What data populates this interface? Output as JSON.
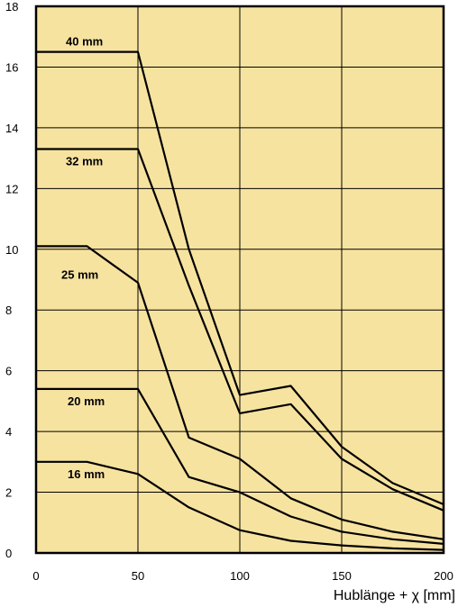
{
  "chart_data": {
    "type": "line",
    "title": "",
    "xlabel": "Hublänge + χ [mm]",
    "ylabel": "",
    "xlim": [
      0,
      200
    ],
    "ylim": [
      0,
      18
    ],
    "x_ticks": [
      "0",
      "50",
      "100",
      "150",
      "200"
    ],
    "y_ticks": [
      "0",
      "2",
      "4",
      "6",
      "8",
      "10",
      "12",
      "14",
      "16",
      "18"
    ],
    "grid": true,
    "background_color": "#f7e3a0",
    "line_color": "#000000",
    "series": [
      {
        "name": "40 mm",
        "x": [
          0,
          50,
          75,
          100,
          125,
          150,
          175,
          200
        ],
        "y": [
          16.5,
          16.5,
          10.0,
          5.2,
          5.5,
          3.5,
          2.3,
          1.6
        ]
      },
      {
        "name": "32 mm",
        "x": [
          0,
          50,
          75,
          100,
          125,
          150,
          175,
          200
        ],
        "y": [
          13.3,
          13.3,
          8.8,
          4.6,
          4.9,
          3.1,
          2.1,
          1.4
        ]
      },
      {
        "name": "25 mm",
        "x": [
          0,
          25,
          50,
          75,
          100,
          125,
          150,
          175,
          200
        ],
        "y": [
          10.1,
          10.1,
          8.9,
          3.8,
          3.1,
          1.8,
          1.1,
          0.7,
          0.45
        ]
      },
      {
        "name": "20 mm",
        "x": [
          0,
          50,
          75,
          100,
          125,
          150,
          175,
          200
        ],
        "y": [
          5.4,
          5.4,
          2.5,
          2.0,
          1.2,
          0.7,
          0.45,
          0.3
        ]
      },
      {
        "name": "16 mm",
        "x": [
          0,
          25,
          50,
          75,
          100,
          125,
          150,
          175,
          200
        ],
        "y": [
          3.0,
          3.0,
          2.6,
          1.5,
          0.75,
          0.4,
          0.25,
          0.15,
          0.1
        ]
      }
    ]
  }
}
